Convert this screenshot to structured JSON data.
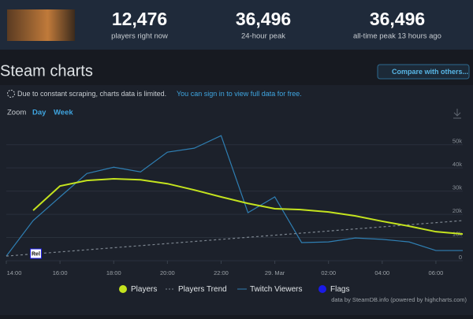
{
  "header": {
    "stats": [
      {
        "value": "12,476",
        "label": "players right now"
      },
      {
        "value": "36,496",
        "label": "24-hour peak"
      },
      {
        "value": "36,496",
        "label": "all-time peak 13 hours ago"
      }
    ]
  },
  "section_title": "Steam charts",
  "compare_button": "Compare with others...",
  "notice": {
    "text": "Due to constant scraping, charts data is limited.",
    "link": "You can sign in to view full data for free."
  },
  "zoom": {
    "label": "Zoom",
    "options": [
      "Day",
      "Week"
    ]
  },
  "credit": "data by SteamDB.info (powered by highcharts.com)",
  "chart_data": {
    "type": "line",
    "xlim": [
      0,
      17
    ],
    "xticks": [
      {
        "value": 0,
        "label": "14:00"
      },
      {
        "value": 2,
        "label": "16:00"
      },
      {
        "value": 4,
        "label": "18:00"
      },
      {
        "value": 6,
        "label": "20:00"
      },
      {
        "value": 8,
        "label": "22:00"
      },
      {
        "value": 10,
        "label": "29. Mar"
      },
      {
        "value": 12,
        "label": "02:00"
      },
      {
        "value": 14,
        "label": "04:00"
      },
      {
        "value": 16,
        "label": "06:00"
      }
    ],
    "ylim": [
      0,
      55000
    ],
    "yticks": [
      0,
      {
        "value": 10000,
        "label": "10k"
      },
      {
        "value": 20000,
        "label": "20k"
      },
      {
        "value": 30000,
        "label": "30k"
      },
      {
        "value": 40000,
        "label": "40k"
      },
      {
        "value": 50000,
        "label": "50k"
      }
    ],
    "grid": true,
    "series": [
      {
        "name": "Players",
        "color": "#c4e31e",
        "dash": false,
        "marker": "circle",
        "x": [
          1,
          2,
          3,
          4,
          5,
          6,
          7,
          8,
          9,
          10,
          11,
          12,
          13,
          14,
          15,
          16,
          17
        ],
        "values": [
          21700,
          32200,
          34600,
          35300,
          34900,
          33200,
          30500,
          27500,
          24700,
          22400,
          22000,
          21000,
          19300,
          17000,
          14900,
          12500,
          11500
        ]
      },
      {
        "name": "Players Trend",
        "color": "#7d8690",
        "dash": true,
        "marker": "line",
        "x": [
          0,
          17
        ],
        "values": [
          2000,
          17300
        ]
      },
      {
        "name": "Twitch Viewers",
        "color": "#2f7fb3",
        "dash": false,
        "marker": "line",
        "x": [
          0,
          1,
          2,
          3,
          4,
          5,
          6,
          7,
          8,
          9,
          10,
          11,
          12,
          13,
          14,
          15,
          16,
          17
        ],
        "values": [
          2000,
          17300,
          27500,
          37600,
          40300,
          38300,
          46800,
          48500,
          53900,
          20700,
          27500,
          7800,
          8100,
          9800,
          9200,
          8100,
          4400,
          4400
        ]
      }
    ],
    "flags": {
      "name": "Flags",
      "color": "#1a1ae6",
      "points": [
        {
          "x": 1.1,
          "label": "Rel"
        }
      ]
    }
  }
}
